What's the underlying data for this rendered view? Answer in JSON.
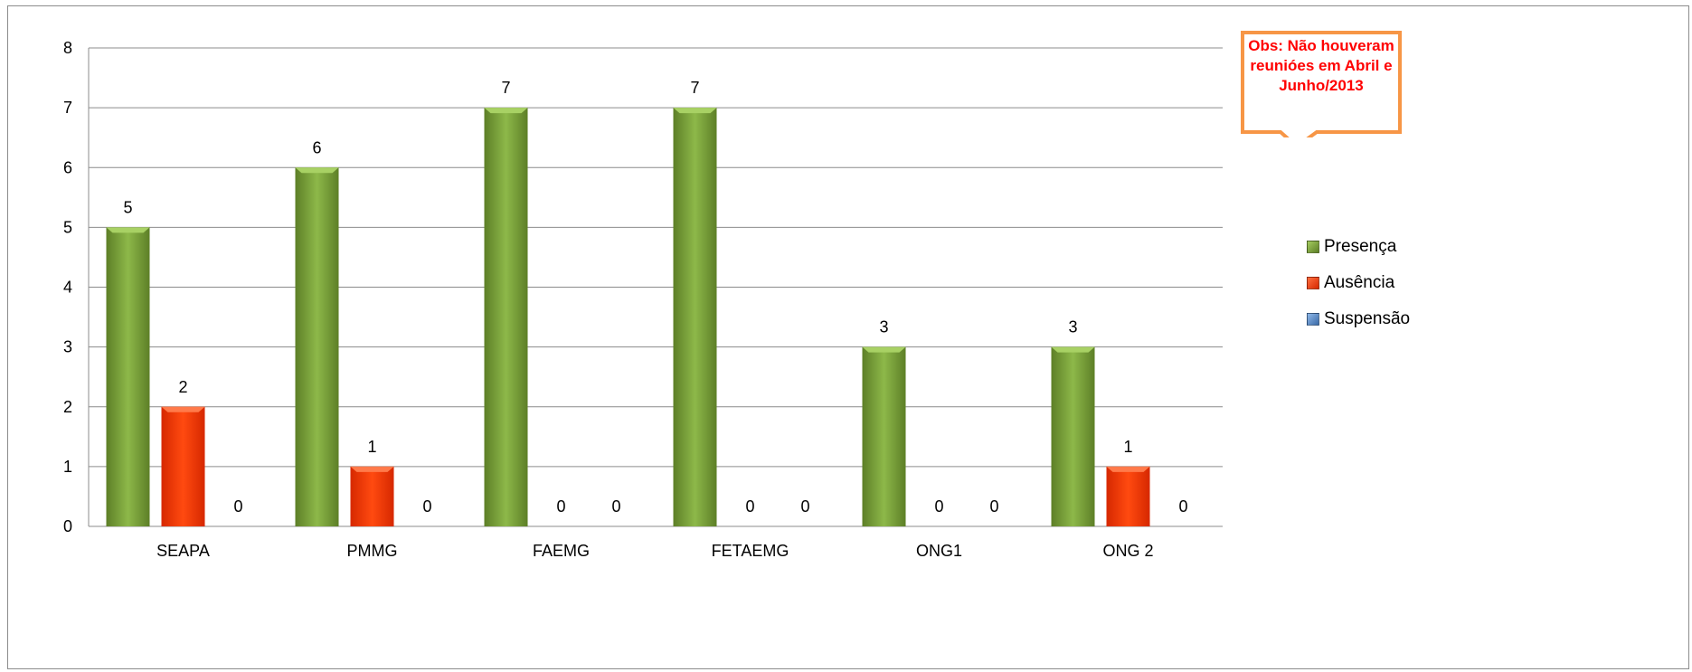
{
  "chart_data": {
    "type": "bar",
    "categories": [
      "SEAPA",
      "PMMG",
      "FAEMG",
      "FETAEMG",
      "ONG1",
      "ONG 2"
    ],
    "series": [
      {
        "name": "Presença",
        "color": "#7fa63a",
        "values": [
          5,
          6,
          7,
          7,
          3,
          3
        ]
      },
      {
        "name": "Ausência",
        "color": "#ff3c00",
        "values": [
          2,
          1,
          0,
          0,
          0,
          1
        ]
      },
      {
        "name": "Suspensão",
        "color": "#4f81bd",
        "values": [
          0,
          0,
          0,
          0,
          0,
          0
        ]
      }
    ],
    "ylim": [
      0,
      8
    ],
    "yticks": [
      "0",
      "1",
      "2",
      "3",
      "4",
      "5",
      "6",
      "7",
      "8"
    ],
    "grid": true,
    "legend_position": "right",
    "annotation": "Obs: Não houveram reunióes em Abril  e Junho/2013"
  }
}
